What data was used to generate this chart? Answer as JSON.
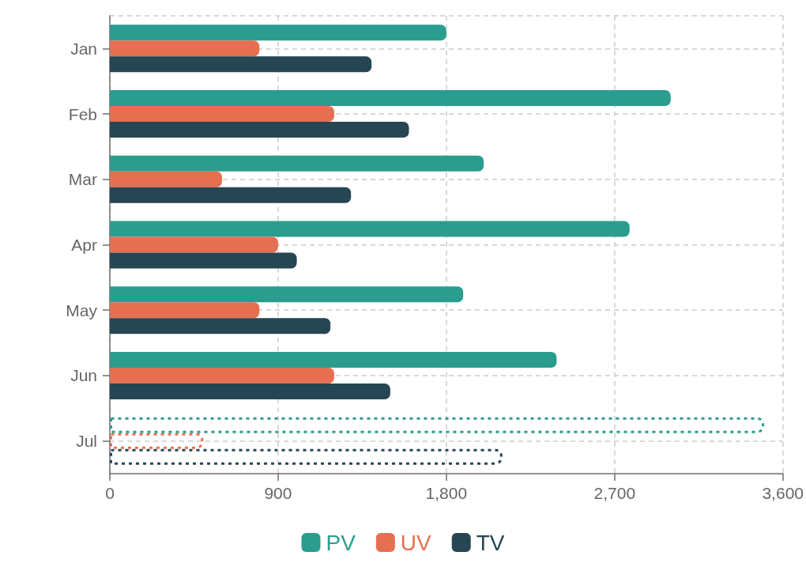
{
  "chart_data": {
    "type": "bar",
    "orientation": "horizontal",
    "categories": [
      "Jan",
      "Feb",
      "Mar",
      "Apr",
      "May",
      "Jun",
      "Jul"
    ],
    "series": [
      {
        "name": "PV",
        "color": "#2a9d8f",
        "values": [
          1800,
          3000,
          2000,
          2780,
          1890,
          2390,
          null
        ]
      },
      {
        "name": "UV",
        "color": "#e76f51",
        "values": [
          800,
          1200,
          600,
          900,
          800,
          1200,
          null
        ]
      },
      {
        "name": "TV",
        "color": "#264653",
        "values": [
          1400,
          1600,
          1290,
          1000,
          1180,
          1500,
          null
        ]
      },
      {
        "color": "#2a9d8f",
        "line_style": "dotted",
        "values": [
          null,
          null,
          null,
          null,
          null,
          null,
          3500
        ]
      },
      {
        "color": "#e76f51",
        "line_style": "dotted",
        "values": [
          null,
          null,
          null,
          null,
          null,
          null,
          500
        ]
      },
      {
        "color": "#264653",
        "line_style": "dotted",
        "values": [
          null,
          null,
          null,
          null,
          null,
          null,
          2100
        ]
      }
    ],
    "xlim": [
      0,
      3600
    ],
    "xticks": [
      0,
      900,
      {
        "value": 1800,
        "label": "1,800"
      },
      {
        "value": 2700,
        "label": "2,700"
      },
      {
        "value": 3600,
        "label": "3,600"
      }
    ],
    "grid": true,
    "legend": "bottom"
  }
}
